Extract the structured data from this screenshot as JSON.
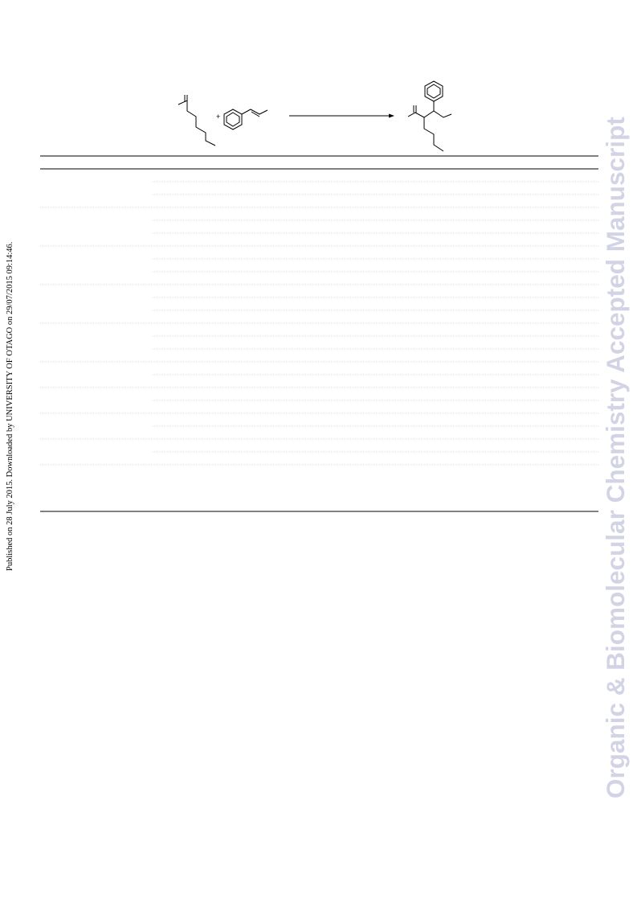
{
  "sidebar": {
    "published": "Published on 28 July 2015. Downloaded by UNIVERSITY OF OTAGO on 29/07/2015 09:14:46."
  },
  "watermark": "Organic & Biomolecular Chemistry Accepted Manuscript",
  "scheme": {
    "plus": "+"
  }
}
